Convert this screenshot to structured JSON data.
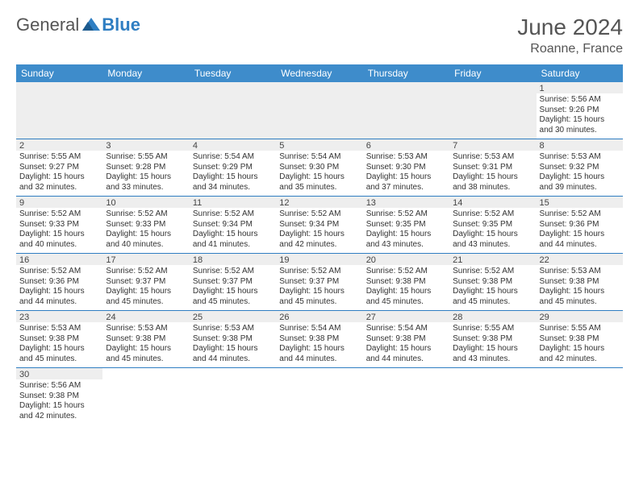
{
  "logo": {
    "general": "General",
    "blue": "Blue",
    "general_color": "#555555",
    "blue_color": "#2f7ec2",
    "triangle_color": "#2f7ec2"
  },
  "header": {
    "month_title": "June 2024",
    "location": "Roanne, France"
  },
  "style": {
    "header_bg": "#3e8ccb",
    "header_text": "#ffffff",
    "cell_border": "#2f7ec2",
    "empty_bg": "#eeeeee",
    "body_text": "#333333",
    "font_size_cell": 10
  },
  "days": [
    "Sunday",
    "Monday",
    "Tuesday",
    "Wednesday",
    "Thursday",
    "Friday",
    "Saturday"
  ],
  "weeks": [
    [
      null,
      null,
      null,
      null,
      null,
      null,
      {
        "n": "1",
        "sr": "Sunrise: 5:56 AM",
        "ss": "Sunset: 9:26 PM",
        "d1": "Daylight: 15 hours",
        "d2": "and 30 minutes."
      }
    ],
    [
      {
        "n": "2",
        "sr": "Sunrise: 5:55 AM",
        "ss": "Sunset: 9:27 PM",
        "d1": "Daylight: 15 hours",
        "d2": "and 32 minutes."
      },
      {
        "n": "3",
        "sr": "Sunrise: 5:55 AM",
        "ss": "Sunset: 9:28 PM",
        "d1": "Daylight: 15 hours",
        "d2": "and 33 minutes."
      },
      {
        "n": "4",
        "sr": "Sunrise: 5:54 AM",
        "ss": "Sunset: 9:29 PM",
        "d1": "Daylight: 15 hours",
        "d2": "and 34 minutes."
      },
      {
        "n": "5",
        "sr": "Sunrise: 5:54 AM",
        "ss": "Sunset: 9:30 PM",
        "d1": "Daylight: 15 hours",
        "d2": "and 35 minutes."
      },
      {
        "n": "6",
        "sr": "Sunrise: 5:53 AM",
        "ss": "Sunset: 9:30 PM",
        "d1": "Daylight: 15 hours",
        "d2": "and 37 minutes."
      },
      {
        "n": "7",
        "sr": "Sunrise: 5:53 AM",
        "ss": "Sunset: 9:31 PM",
        "d1": "Daylight: 15 hours",
        "d2": "and 38 minutes."
      },
      {
        "n": "8",
        "sr": "Sunrise: 5:53 AM",
        "ss": "Sunset: 9:32 PM",
        "d1": "Daylight: 15 hours",
        "d2": "and 39 minutes."
      }
    ],
    [
      {
        "n": "9",
        "sr": "Sunrise: 5:52 AM",
        "ss": "Sunset: 9:33 PM",
        "d1": "Daylight: 15 hours",
        "d2": "and 40 minutes."
      },
      {
        "n": "10",
        "sr": "Sunrise: 5:52 AM",
        "ss": "Sunset: 9:33 PM",
        "d1": "Daylight: 15 hours",
        "d2": "and 40 minutes."
      },
      {
        "n": "11",
        "sr": "Sunrise: 5:52 AM",
        "ss": "Sunset: 9:34 PM",
        "d1": "Daylight: 15 hours",
        "d2": "and 41 minutes."
      },
      {
        "n": "12",
        "sr": "Sunrise: 5:52 AM",
        "ss": "Sunset: 9:34 PM",
        "d1": "Daylight: 15 hours",
        "d2": "and 42 minutes."
      },
      {
        "n": "13",
        "sr": "Sunrise: 5:52 AM",
        "ss": "Sunset: 9:35 PM",
        "d1": "Daylight: 15 hours",
        "d2": "and 43 minutes."
      },
      {
        "n": "14",
        "sr": "Sunrise: 5:52 AM",
        "ss": "Sunset: 9:35 PM",
        "d1": "Daylight: 15 hours",
        "d2": "and 43 minutes."
      },
      {
        "n": "15",
        "sr": "Sunrise: 5:52 AM",
        "ss": "Sunset: 9:36 PM",
        "d1": "Daylight: 15 hours",
        "d2": "and 44 minutes."
      }
    ],
    [
      {
        "n": "16",
        "sr": "Sunrise: 5:52 AM",
        "ss": "Sunset: 9:36 PM",
        "d1": "Daylight: 15 hours",
        "d2": "and 44 minutes."
      },
      {
        "n": "17",
        "sr": "Sunrise: 5:52 AM",
        "ss": "Sunset: 9:37 PM",
        "d1": "Daylight: 15 hours",
        "d2": "and 45 minutes."
      },
      {
        "n": "18",
        "sr": "Sunrise: 5:52 AM",
        "ss": "Sunset: 9:37 PM",
        "d1": "Daylight: 15 hours",
        "d2": "and 45 minutes."
      },
      {
        "n": "19",
        "sr": "Sunrise: 5:52 AM",
        "ss": "Sunset: 9:37 PM",
        "d1": "Daylight: 15 hours",
        "d2": "and 45 minutes."
      },
      {
        "n": "20",
        "sr": "Sunrise: 5:52 AM",
        "ss": "Sunset: 9:38 PM",
        "d1": "Daylight: 15 hours",
        "d2": "and 45 minutes."
      },
      {
        "n": "21",
        "sr": "Sunrise: 5:52 AM",
        "ss": "Sunset: 9:38 PM",
        "d1": "Daylight: 15 hours",
        "d2": "and 45 minutes."
      },
      {
        "n": "22",
        "sr": "Sunrise: 5:53 AM",
        "ss": "Sunset: 9:38 PM",
        "d1": "Daylight: 15 hours",
        "d2": "and 45 minutes."
      }
    ],
    [
      {
        "n": "23",
        "sr": "Sunrise: 5:53 AM",
        "ss": "Sunset: 9:38 PM",
        "d1": "Daylight: 15 hours",
        "d2": "and 45 minutes."
      },
      {
        "n": "24",
        "sr": "Sunrise: 5:53 AM",
        "ss": "Sunset: 9:38 PM",
        "d1": "Daylight: 15 hours",
        "d2": "and 45 minutes."
      },
      {
        "n": "25",
        "sr": "Sunrise: 5:53 AM",
        "ss": "Sunset: 9:38 PM",
        "d1": "Daylight: 15 hours",
        "d2": "and 44 minutes."
      },
      {
        "n": "26",
        "sr": "Sunrise: 5:54 AM",
        "ss": "Sunset: 9:38 PM",
        "d1": "Daylight: 15 hours",
        "d2": "and 44 minutes."
      },
      {
        "n": "27",
        "sr": "Sunrise: 5:54 AM",
        "ss": "Sunset: 9:38 PM",
        "d1": "Daylight: 15 hours",
        "d2": "and 44 minutes."
      },
      {
        "n": "28",
        "sr": "Sunrise: 5:55 AM",
        "ss": "Sunset: 9:38 PM",
        "d1": "Daylight: 15 hours",
        "d2": "and 43 minutes."
      },
      {
        "n": "29",
        "sr": "Sunrise: 5:55 AM",
        "ss": "Sunset: 9:38 PM",
        "d1": "Daylight: 15 hours",
        "d2": "and 42 minutes."
      }
    ],
    [
      {
        "n": "30",
        "sr": "Sunrise: 5:56 AM",
        "ss": "Sunset: 9:38 PM",
        "d1": "Daylight: 15 hours",
        "d2": "and 42 minutes."
      },
      null,
      null,
      null,
      null,
      null,
      null
    ]
  ]
}
